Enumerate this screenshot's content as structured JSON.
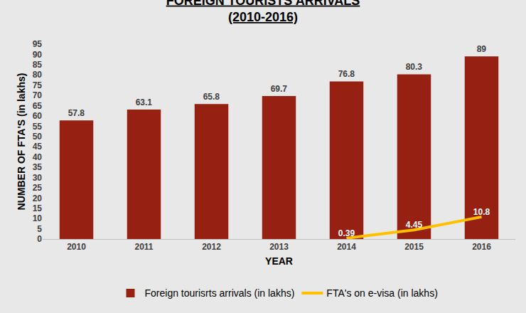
{
  "chart_data": {
    "type": "bar",
    "title": "FOREIGN TOURISTS ARRIVALS",
    "subtitle": "(2010-2016)",
    "x_label": "YEAR",
    "y_label": "NUMBER OF FTA'S (in lakhs)",
    "categories": [
      "2010",
      "2011",
      "2012",
      "2013",
      "2014",
      "2015",
      "2016"
    ],
    "series": [
      {
        "name": "Foreign tourisrts arrivals (in lakhs)",
        "type": "bar",
        "color": "#962011",
        "values": [
          57.8,
          63.1,
          65.8,
          69.7,
          76.8,
          80.3,
          89
        ]
      },
      {
        "name": "FTA's on e-visa (in lakhs)",
        "type": "line",
        "color": "#ffc000",
        "values": [
          null,
          null,
          null,
          null,
          0.39,
          4.45,
          10.8
        ]
      }
    ],
    "ylim": [
      0,
      95
    ],
    "yticks": [
      0,
      5,
      10,
      15,
      20,
      25,
      30,
      35,
      40,
      45,
      50,
      55,
      60,
      65,
      70,
      75,
      80,
      85,
      90,
      95
    ],
    "grid": false,
    "legend": "bottom",
    "data_labels": true
  }
}
